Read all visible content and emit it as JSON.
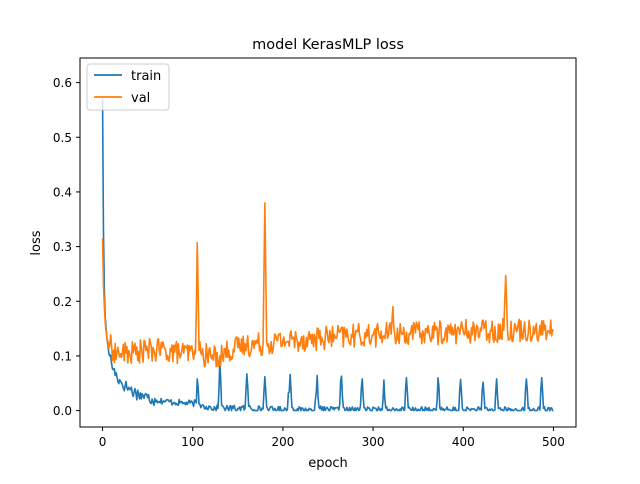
{
  "chart_data": {
    "type": "line",
    "title": "model KerasMLP loss",
    "xlabel": "epoch",
    "ylabel": "loss",
    "xlim": [
      -25,
      525
    ],
    "ylim": [
      -0.03,
      0.645
    ],
    "x_ticks": [
      0,
      100,
      200,
      300,
      400,
      500
    ],
    "y_ticks": [
      0.0,
      0.1,
      0.2,
      0.3,
      0.4,
      0.5,
      0.6
    ],
    "x_tick_labels": [
      "0",
      "100",
      "200",
      "300",
      "400",
      "500"
    ],
    "y_tick_labels": [
      "0.0",
      "0.1",
      "0.2",
      "0.3",
      "0.4",
      "0.5",
      "0.6"
    ],
    "grid": false,
    "legend_position": "top-left",
    "epochs": 500,
    "series": [
      {
        "name": "train",
        "color": "#1f77b4",
        "points": [
          [
            0,
            0.57
          ],
          [
            1,
            0.33
          ],
          [
            2,
            0.22
          ],
          [
            3,
            0.17
          ],
          [
            5,
            0.13
          ],
          [
            8,
            0.1
          ],
          [
            12,
            0.075
          ],
          [
            16,
            0.062
          ],
          [
            20,
            0.053
          ],
          [
            25,
            0.045
          ],
          [
            30,
            0.04
          ],
          [
            35,
            0.034
          ],
          [
            40,
            0.03
          ],
          [
            45,
            0.027
          ],
          [
            50,
            0.024
          ],
          [
            55,
            0.021
          ],
          [
            60,
            0.019
          ],
          [
            70,
            0.017
          ],
          [
            80,
            0.015
          ],
          [
            90,
            0.014
          ],
          [
            100,
            0.013
          ],
          [
            104,
            0.014
          ],
          [
            105,
            0.058
          ],
          [
            107,
            0.012
          ],
          [
            110,
            0.009
          ],
          [
            120,
            0.006
          ],
          [
            125,
            0.004
          ],
          [
            128,
            0.004
          ],
          [
            130,
            0.088
          ],
          [
            132,
            0.01
          ],
          [
            135,
            0.004
          ],
          [
            150,
            0.004
          ],
          [
            158,
            0.004
          ],
          [
            160,
            0.067
          ],
          [
            162,
            0.008
          ],
          [
            165,
            0.003
          ],
          [
            178,
            0.003
          ],
          [
            180,
            0.062
          ],
          [
            182,
            0.007
          ],
          [
            185,
            0.002
          ],
          [
            205,
            0.002
          ],
          [
            208,
            0.066
          ],
          [
            210,
            0.006
          ],
          [
            213,
            0.001
          ],
          [
            235,
            0.001
          ],
          [
            238,
            0.064
          ],
          [
            240,
            0.006
          ],
          [
            243,
            0.001
          ],
          [
            262,
            0.001
          ],
          [
            265,
            0.063
          ],
          [
            267,
            0.006
          ],
          [
            270,
            0.001
          ],
          [
            285,
            0.001
          ],
          [
            288,
            0.058
          ],
          [
            290,
            0.005
          ],
          [
            293,
            0.001
          ],
          [
            310,
            0.001
          ],
          [
            312,
            0.056
          ],
          [
            314,
            0.005
          ],
          [
            317,
            0.001
          ],
          [
            335,
            0.001
          ],
          [
            337,
            0.06
          ],
          [
            339,
            0.005
          ],
          [
            342,
            0.001
          ],
          [
            370,
            0.001
          ],
          [
            372,
            0.06
          ],
          [
            374,
            0.005
          ],
          [
            377,
            0.001
          ],
          [
            395,
            0.001
          ],
          [
            397,
            0.057
          ],
          [
            399,
            0.004
          ],
          [
            402,
            0.001
          ],
          [
            420,
            0.001
          ],
          [
            422,
            0.052
          ],
          [
            424,
            0.004
          ],
          [
            427,
            0.001
          ],
          [
            435,
            0.001
          ],
          [
            437,
            0.058
          ],
          [
            439,
            0.004
          ],
          [
            442,
            0.001
          ],
          [
            468,
            0.001
          ],
          [
            470,
            0.058
          ],
          [
            472,
            0.004
          ],
          [
            475,
            0.001
          ],
          [
            485,
            0.001
          ],
          [
            487,
            0.06
          ],
          [
            489,
            0.004
          ],
          [
            492,
            0.0
          ],
          [
            500,
            0.0
          ]
        ],
        "noise": 0.012
      },
      {
        "name": "val",
        "color": "#ff7f0e",
        "points": [
          [
            0,
            0.315
          ],
          [
            1,
            0.23
          ],
          [
            2,
            0.19
          ],
          [
            3,
            0.16
          ],
          [
            5,
            0.13
          ],
          [
            8,
            0.12
          ],
          [
            12,
            0.11
          ],
          [
            16,
            0.105
          ],
          [
            20,
            0.104
          ],
          [
            30,
            0.105
          ],
          [
            40,
            0.108
          ],
          [
            50,
            0.11
          ],
          [
            60,
            0.11
          ],
          [
            70,
            0.11
          ],
          [
            80,
            0.107
          ],
          [
            90,
            0.105
          ],
          [
            100,
            0.104
          ],
          [
            103,
            0.104
          ],
          [
            105,
            0.307
          ],
          [
            107,
            0.11
          ],
          [
            110,
            0.102
          ],
          [
            120,
            0.1
          ],
          [
            130,
            0.1
          ],
          [
            140,
            0.11
          ],
          [
            150,
            0.115
          ],
          [
            160,
            0.12
          ],
          [
            170,
            0.122
          ],
          [
            178,
            0.122
          ],
          [
            180,
            0.38
          ],
          [
            182,
            0.125
          ],
          [
            190,
            0.125
          ],
          [
            200,
            0.128
          ],
          [
            220,
            0.13
          ],
          [
            240,
            0.132
          ],
          [
            260,
            0.135
          ],
          [
            280,
            0.137
          ],
          [
            300,
            0.138
          ],
          [
            320,
            0.14
          ],
          [
            322,
            0.19
          ],
          [
            324,
            0.14
          ],
          [
            340,
            0.141
          ],
          [
            360,
            0.142
          ],
          [
            380,
            0.143
          ],
          [
            400,
            0.145
          ],
          [
            420,
            0.146
          ],
          [
            445,
            0.147
          ],
          [
            447,
            0.247
          ],
          [
            449,
            0.148
          ],
          [
            460,
            0.148
          ],
          [
            480,
            0.149
          ],
          [
            495,
            0.145
          ],
          [
            500,
            0.145
          ]
        ],
        "noise": 0.022
      }
    ]
  }
}
